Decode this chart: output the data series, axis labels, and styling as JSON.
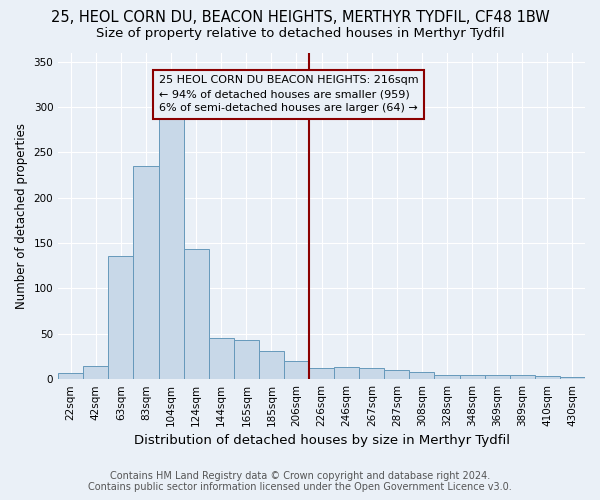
{
  "title": "25, HEOL CORN DU, BEACON HEIGHTS, MERTHYR TYDFIL, CF48 1BW",
  "subtitle": "Size of property relative to detached houses in Merthyr Tydfil",
  "xlabel": "Distribution of detached houses by size in Merthyr Tydfil",
  "ylabel": "Number of detached properties",
  "footer1": "Contains HM Land Registry data © Crown copyright and database right 2024.",
  "footer2": "Contains public sector information licensed under the Open Government Licence v3.0.",
  "categories": [
    "22sqm",
    "42sqm",
    "63sqm",
    "83sqm",
    "104sqm",
    "124sqm",
    "144sqm",
    "165sqm",
    "185sqm",
    "206sqm",
    "226sqm",
    "246sqm",
    "267sqm",
    "287sqm",
    "308sqm",
    "328sqm",
    "348sqm",
    "369sqm",
    "389sqm",
    "410sqm",
    "430sqm"
  ],
  "values": [
    7,
    15,
    136,
    235,
    290,
    143,
    45,
    43,
    31,
    20,
    12,
    13,
    12,
    10,
    8,
    5,
    5,
    5,
    5,
    3,
    2
  ],
  "bar_color": "#c8d8e8",
  "bar_edge_color": "#6699bb",
  "vline_x": 9.5,
  "vline_color": "#8b0000",
  "annotation_line1": "25 HEOL CORN DU BEACON HEIGHTS: 216sqm",
  "annotation_line2": "← 94% of detached houses are smaller (959)",
  "annotation_line3": "6% of semi-detached houses are larger (64) →",
  "ylim": [
    0,
    360
  ],
  "yticks": [
    0,
    50,
    100,
    150,
    200,
    250,
    300,
    350
  ],
  "bg_color": "#eaf0f7",
  "grid_color": "#ffffff",
  "title_fontsize": 10.5,
  "subtitle_fontsize": 9.5,
  "xlabel_fontsize": 9.5,
  "ylabel_fontsize": 8.5,
  "tick_fontsize": 7.5,
  "footer_fontsize": 7,
  "annotation_fontsize": 8
}
